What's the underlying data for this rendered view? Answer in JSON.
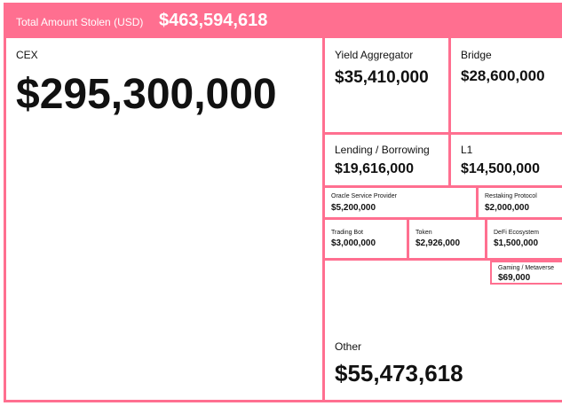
{
  "header": {
    "label": "Total Amount Stolen (USD)",
    "total": "$463,594,618"
  },
  "chart_data": {
    "type": "treemap",
    "title": "Total Amount Stolen (USD)",
    "total": 463594618,
    "total_label": "$463,594,618",
    "colors": {
      "header": "#ff6f90",
      "border": "#ff6f90",
      "cell": "#ffffff"
    },
    "categories": [
      {
        "name": "CEX",
        "value": 295300000,
        "value_label": "$295,300,000"
      },
      {
        "name": "Other",
        "value": 55473618,
        "value_label": "$55,473,618"
      },
      {
        "name": "Yield Aggregator",
        "value": 35410000,
        "value_label": "$35,410,000"
      },
      {
        "name": "Bridge",
        "value": 28600000,
        "value_label": "$28,600,000"
      },
      {
        "name": "Lending / Borrowing",
        "value": 19616000,
        "value_label": "$19,616,000"
      },
      {
        "name": "L1",
        "value": 14500000,
        "value_label": "$14,500,000"
      },
      {
        "name": "Oracle Service Provider",
        "value": 5200000,
        "value_label": "$5,200,000"
      },
      {
        "name": "Trading Bot",
        "value": 3000000,
        "value_label": "$3,000,000"
      },
      {
        "name": "Token",
        "value": 2926000,
        "value_label": "$2,926,000"
      },
      {
        "name": "Restaking Protocol",
        "value": 2000000,
        "value_label": "$2,000,000"
      },
      {
        "name": "DeFi Ecosystem",
        "value": 1500000,
        "value_label": "$1,500,000"
      },
      {
        "name": "Gaming / Metaverse",
        "value": 69000,
        "value_label": "$69,000"
      }
    ]
  }
}
